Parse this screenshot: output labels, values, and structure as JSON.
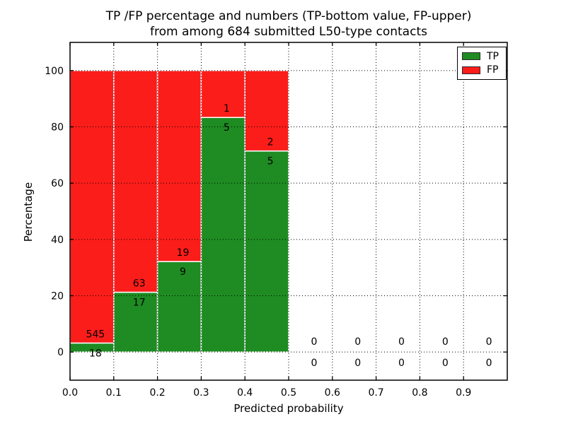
{
  "figure": {
    "title_line1": "TP /FP percentage and numbers (TP-bottom value, FP-upper)",
    "title_line2": "from among 684 submitted L50-type contacts",
    "xlabel": "Predicted probability",
    "ylabel": "Percentage"
  },
  "chart_data": {
    "type": "bar",
    "stacked": true,
    "normalized": "each non-empty bin stacks TP%+FP% to 100",
    "title": "TP /FP percentage and numbers (TP-bottom value, FP-upper) from among 684 submitted L50-type contacts",
    "xlabel": "Predicted probability",
    "ylabel": "Percentage",
    "total_submitted": 684,
    "bin_width": 0.1,
    "xlim": [
      0.0,
      1.0
    ],
    "ylim": [
      -10,
      110
    ],
    "xticks": [
      "0.0",
      "0.1",
      "0.2",
      "0.3",
      "0.4",
      "0.5",
      "0.6",
      "0.7",
      "0.8",
      "0.9"
    ],
    "yticks": [
      0,
      20,
      40,
      60,
      80,
      100
    ],
    "grid": "dotted black, on top of bars",
    "legend_position": "upper right",
    "legend": [
      {
        "label": "TP",
        "color": "#1e8c22"
      },
      {
        "label": "FP",
        "color": "#fb1d1a"
      }
    ],
    "colors": {
      "tp": "#1e8c22",
      "fp": "#fb1d1a",
      "bar_edge": "#ffffff"
    },
    "bins": [
      {
        "range": "0.0-0.1",
        "tp": 18,
        "fp": 545,
        "tp_pct": 3.2,
        "fp_pct": 96.8
      },
      {
        "range": "0.1-0.2",
        "tp": 17,
        "fp": 63,
        "tp_pct": 21.25,
        "fp_pct": 78.75
      },
      {
        "range": "0.2-0.3",
        "tp": 9,
        "fp": 19,
        "tp_pct": 32.14,
        "fp_pct": 67.86
      },
      {
        "range": "0.3-0.4",
        "tp": 5,
        "fp": 1,
        "tp_pct": 83.33,
        "fp_pct": 16.67
      },
      {
        "range": "0.4-0.5",
        "tp": 5,
        "fp": 2,
        "tp_pct": 71.43,
        "fp_pct": 28.57
      },
      {
        "range": "0.5-0.6",
        "tp": 0,
        "fp": 0,
        "tp_pct": 0,
        "fp_pct": 0
      },
      {
        "range": "0.6-0.7",
        "tp": 0,
        "fp": 0,
        "tp_pct": 0,
        "fp_pct": 0
      },
      {
        "range": "0.7-0.8",
        "tp": 0,
        "fp": 0,
        "tp_pct": 0,
        "fp_pct": 0
      },
      {
        "range": "0.8-0.9",
        "tp": 0,
        "fp": 0,
        "tp_pct": 0,
        "fp_pct": 0
      },
      {
        "range": "0.9-1.0",
        "tp": 0,
        "fp": 0,
        "tp_pct": 0,
        "fp_pct": 0
      }
    ]
  }
}
